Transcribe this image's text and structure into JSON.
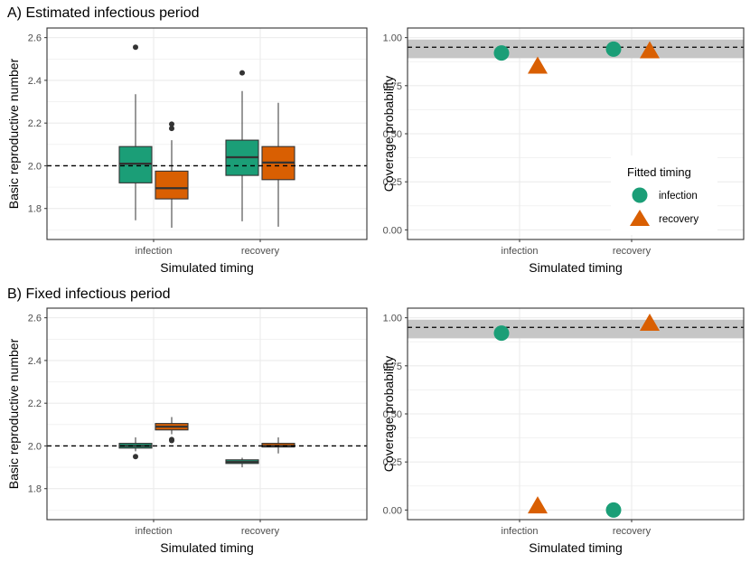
{
  "panel_titles": [
    "A) Estimated infectious period",
    "B) Fixed infectious period"
  ],
  "colors": {
    "infection": "#1b9e77",
    "recovery": "#d95f02",
    "grid": "#ebebeb",
    "band": "#c6c6c6"
  },
  "legend": {
    "title": "Fitted timing",
    "entries": [
      {
        "label": "infection",
        "shape": "circle",
        "color": "#1b9e77"
      },
      {
        "label": "recovery",
        "shape": "triangle",
        "color": "#d95f02"
      }
    ]
  },
  "chart_data": [
    {
      "id": "A_box",
      "type": "boxplot",
      "xlabel": "Simulated timing",
      "ylabel": "Basic reproductive number",
      "categories": [
        "infection",
        "recovery"
      ],
      "ylim": [
        1.655,
        2.645
      ],
      "yticks": [
        1.8,
        2.0,
        2.2,
        2.4,
        2.6
      ],
      "ytick_labels": [
        "1.8",
        "2.0",
        "2.2",
        "2.4",
        "2.6"
      ],
      "reference_line": 2.0,
      "series": [
        {
          "fitted": "infection",
          "color": "#1b9e77",
          "boxes": [
            {
              "category": "infection",
              "whisker_low": 1.745,
              "q1": 1.92,
              "median": 2.01,
              "q3": 2.09,
              "whisker_high": 2.335,
              "outliers": [
                2.555
              ]
            },
            {
              "category": "recovery",
              "whisker_low": 1.74,
              "q1": 1.955,
              "median": 2.04,
              "q3": 2.12,
              "whisker_high": 2.35,
              "outliers": [
                2.435
              ]
            }
          ]
        },
        {
          "fitted": "recovery",
          "color": "#d95f02",
          "boxes": [
            {
              "category": "infection",
              "whisker_low": 1.71,
              "q1": 1.845,
              "median": 1.895,
              "q3": 1.975,
              "whisker_high": 2.12,
              "outliers": [
                2.175,
                2.195
              ]
            },
            {
              "category": "recovery",
              "whisker_low": 1.715,
              "q1": 1.935,
              "median": 2.015,
              "q3": 2.09,
              "whisker_high": 2.295,
              "outliers": []
            }
          ]
        }
      ]
    },
    {
      "id": "A_cov",
      "type": "scatter",
      "xlabel": "Simulated timing",
      "ylabel": "Coverage probability",
      "categories": [
        "infection",
        "recovery"
      ],
      "ylim": [
        -0.05,
        1.05
      ],
      "yticks": [
        0,
        0.25,
        0.5,
        0.75,
        1.0
      ],
      "ytick_labels": [
        "0.00",
        "0.25",
        "0.50",
        "0.75",
        "1.00"
      ],
      "reference_line": 0.95,
      "band": [
        0.893,
        0.99
      ],
      "series": [
        {
          "name": "infection",
          "shape": "circle",
          "color": "#1b9e77",
          "values": [
            0.92,
            0.94
          ]
        },
        {
          "name": "recovery",
          "shape": "triangle",
          "color": "#d95f02",
          "values": [
            0.85,
            0.93
          ]
        }
      ],
      "legend_position": "bottom-right"
    },
    {
      "id": "B_box",
      "type": "boxplot",
      "xlabel": "Simulated timing",
      "ylabel": "Basic reproductive number",
      "categories": [
        "infection",
        "recovery"
      ],
      "ylim": [
        1.655,
        2.645
      ],
      "yticks": [
        1.8,
        2.0,
        2.2,
        2.4,
        2.6
      ],
      "ytick_labels": [
        "1.8",
        "2.0",
        "2.2",
        "2.4",
        "2.6"
      ],
      "reference_line": 2.0,
      "series": [
        {
          "fitted": "infection",
          "color": "#1b9e77",
          "boxes": [
            {
              "category": "infection",
              "whisker_low": 1.975,
              "q1": 1.99,
              "median": 2.0,
              "q3": 2.012,
              "whisker_high": 2.04,
              "outliers": [
                1.95
              ]
            },
            {
              "category": "recovery",
              "whisker_low": 1.9,
              "q1": 1.918,
              "median": 1.925,
              "q3": 1.935,
              "whisker_high": 1.945,
              "outliers": []
            }
          ]
        },
        {
          "fitted": "recovery",
          "color": "#d95f02",
          "boxes": [
            {
              "category": "infection",
              "whisker_low": 2.055,
              "q1": 2.075,
              "median": 2.09,
              "q3": 2.105,
              "whisker_high": 2.135,
              "outliers": [
                2.025,
                2.03
              ]
            },
            {
              "category": "recovery",
              "whisker_low": 1.965,
              "q1": 1.995,
              "median": 2.0,
              "q3": 2.012,
              "whisker_high": 2.04,
              "outliers": []
            }
          ]
        }
      ]
    },
    {
      "id": "B_cov",
      "type": "scatter",
      "xlabel": "Simulated timing",
      "ylabel": "Coverage probability",
      "categories": [
        "infection",
        "recovery"
      ],
      "ylim": [
        -0.05,
        1.05
      ],
      "yticks": [
        0,
        0.25,
        0.5,
        0.75,
        1.0
      ],
      "ytick_labels": [
        "0.00",
        "0.25",
        "0.50",
        "0.75",
        "1.00"
      ],
      "reference_line": 0.95,
      "band": [
        0.893,
        0.99
      ],
      "series": [
        {
          "name": "infection",
          "shape": "circle",
          "color": "#1b9e77",
          "values": [
            0.92,
            0.0
          ]
        },
        {
          "name": "recovery",
          "shape": "triangle",
          "color": "#d95f02",
          "values": [
            0.02,
            0.97
          ]
        }
      ]
    }
  ]
}
